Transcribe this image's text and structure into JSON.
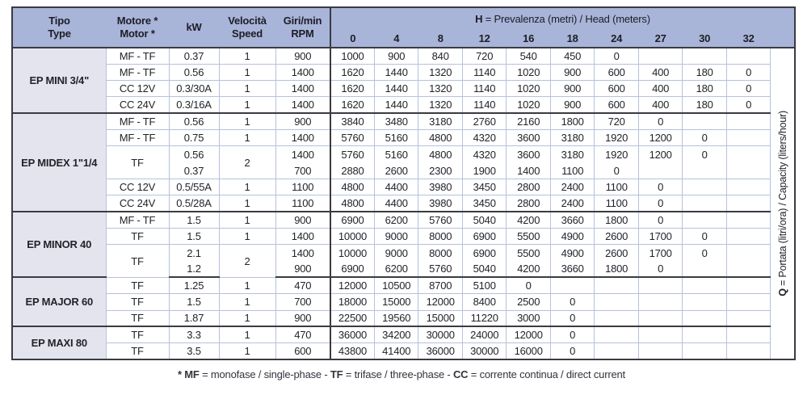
{
  "colors": {
    "header_bg": "#a9b4d9",
    "type_column_bg": "#e4e4ef",
    "grid_line": "#b6c1dd",
    "dark_border": "#3a3b42",
    "text": "#22232a"
  },
  "header": {
    "type_l1": "Tipo",
    "type_l2": "Type",
    "motor_l1": "Motore *",
    "motor_l2": "Motor *",
    "kw": "kW",
    "speed_l1": "Velocità",
    "speed_l2": "Speed",
    "rpm_l1": "Giri/min",
    "rpm_l2": "RPM",
    "h_bold": "H",
    "h_rest": " = Prevalenza (metri) / Head (meters)",
    "heads": [
      "0",
      "4",
      "8",
      "12",
      "16",
      "18",
      "24",
      "27",
      "30",
      "32"
    ]
  },
  "side_label": {
    "bold": "Q",
    "rest": " = Portata (litri/ora) / Capacity (liters/hour)"
  },
  "footnote": [
    {
      "b": "* MF"
    },
    {
      "t": " = monofase / single-phase - "
    },
    {
      "b": "TF"
    },
    {
      "t": " = trifase / three-phase - "
    },
    {
      "b": "CC"
    },
    {
      "t": " = corrente continua / direct current"
    }
  ],
  "groups": [
    {
      "type": "EP MINI 3/4\"",
      "rows": [
        {
          "motor": "MF - TF",
          "kw": "0.37",
          "speed": "1",
          "rpm": "900",
          "values": [
            "1000",
            "900",
            "840",
            "720",
            "540",
            "450",
            "0",
            "",
            "",
            ""
          ]
        },
        {
          "motor": "MF - TF",
          "kw": "0.56",
          "speed": "1",
          "rpm": "1400",
          "values": [
            "1620",
            "1440",
            "1320",
            "1140",
            "1020",
            "900",
            "600",
            "400",
            "180",
            "0"
          ]
        },
        {
          "motor": "CC 12V",
          "kw": "0.3/30A",
          "speed": "1",
          "rpm": "1400",
          "values": [
            "1620",
            "1440",
            "1320",
            "1140",
            "1020",
            "900",
            "600",
            "400",
            "180",
            "0"
          ]
        },
        {
          "motor": "CC 24V",
          "kw": "0.3/16A",
          "speed": "1",
          "rpm": "1400",
          "values": [
            "1620",
            "1440",
            "1320",
            "1140",
            "1020",
            "900",
            "600",
            "400",
            "180",
            "0"
          ]
        }
      ]
    },
    {
      "type": "EP MIDEX 1\"1/4",
      "rows": [
        {
          "motor": "MF - TF",
          "kw": "0.56",
          "speed": "1",
          "rpm": "900",
          "values": [
            "3840",
            "3480",
            "3180",
            "2760",
            "2160",
            "1800",
            "720",
            "0",
            "",
            ""
          ]
        },
        {
          "motor": "MF - TF",
          "kw": "0.75",
          "speed": "1",
          "rpm": "1400",
          "values": [
            "5760",
            "5160",
            "4800",
            "4320",
            "3600",
            "3180",
            "1920",
            "1200",
            "0",
            ""
          ]
        },
        {
          "motor": "TF",
          "speed": "2",
          "sub": [
            {
              "kw": "0.56",
              "rpm": "1400",
              "values": [
                "5760",
                "5160",
                "4800",
                "4320",
                "3600",
                "3180",
                "1920",
                "1200",
                "0",
                ""
              ]
            },
            {
              "kw": "0.37",
              "rpm": "700",
              "values": [
                "2880",
                "2600",
                "2300",
                "1900",
                "1400",
                "1100",
                "0",
                "",
                "",
                ""
              ]
            }
          ]
        },
        {
          "motor": "CC 12V",
          "kw": "0.5/55A",
          "speed": "1",
          "rpm": "1100",
          "values": [
            "4800",
            "4400",
            "3980",
            "3450",
            "2800",
            "2400",
            "1100",
            "0",
            "",
            ""
          ]
        },
        {
          "motor": "CC 24V",
          "kw": "0.5/28A",
          "speed": "1",
          "rpm": "1100",
          "values": [
            "4800",
            "4400",
            "3980",
            "3450",
            "2800",
            "2400",
            "1100",
            "0",
            "",
            ""
          ]
        }
      ]
    },
    {
      "type": "EP MINOR 40",
      "rows": [
        {
          "motor": "MF - TF",
          "kw": "1.5",
          "speed": "1",
          "rpm": "900",
          "values": [
            "6900",
            "6200",
            "5760",
            "5040",
            "4200",
            "3660",
            "1800",
            "0",
            "",
            ""
          ]
        },
        {
          "motor": "TF",
          "kw": "1.5",
          "speed": "1",
          "rpm": "1400",
          "values": [
            "10000",
            "9000",
            "8000",
            "6900",
            "5500",
            "4900",
            "2600",
            "1700",
            "0",
            ""
          ]
        },
        {
          "motor": "TF",
          "speed": "2",
          "sub": [
            {
              "kw": "2.1",
              "rpm": "1400",
              "values": [
                "10000",
                "9000",
                "8000",
                "6900",
                "5500",
                "4900",
                "2600",
                "1700",
                "0",
                ""
              ]
            },
            {
              "kw": "1.2",
              "rpm": "900",
              "values": [
                "6900",
                "6200",
                "5760",
                "5040",
                "4200",
                "3660",
                "1800",
                "0",
                "",
                ""
              ]
            }
          ]
        }
      ]
    },
    {
      "type": "EP MAJOR 60",
      "rows": [
        {
          "motor": "TF",
          "kw": "1.25",
          "speed": "1",
          "rpm": "470",
          "values": [
            "12000",
            "10500",
            "8700",
            "5100",
            "0",
            "",
            "",
            "",
            "",
            ""
          ]
        },
        {
          "motor": "TF",
          "kw": "1.5",
          "speed": "1",
          "rpm": "700",
          "values": [
            "18000",
            "15000",
            "12000",
            "8400",
            "2500",
            "0",
            "",
            "",
            "",
            ""
          ]
        },
        {
          "motor": "TF",
          "kw": "1.87",
          "speed": "1",
          "rpm": "900",
          "values": [
            "22500",
            "19560",
            "15000",
            "11220",
            "3000",
            "0",
            "",
            "",
            "",
            ""
          ]
        }
      ]
    },
    {
      "type": "EP MAXI 80",
      "rows": [
        {
          "motor": "TF",
          "kw": "3.3",
          "speed": "1",
          "rpm": "470",
          "values": [
            "36000",
            "34200",
            "30000",
            "24000",
            "12000",
            "0",
            "",
            "",
            "",
            ""
          ]
        },
        {
          "motor": "TF",
          "kw": "3.5",
          "speed": "1",
          "rpm": "600",
          "values": [
            "43800",
            "41400",
            "36000",
            "30000",
            "16000",
            "0",
            "",
            "",
            "",
            ""
          ]
        }
      ]
    }
  ]
}
